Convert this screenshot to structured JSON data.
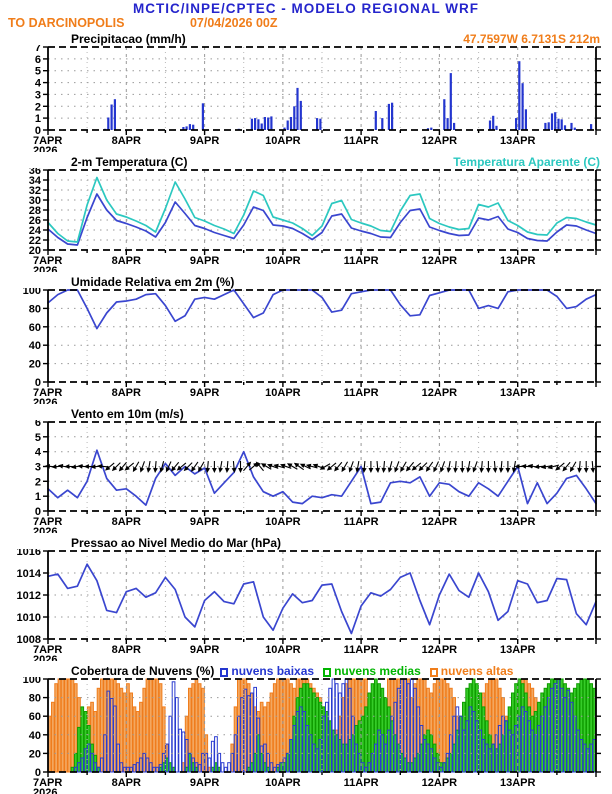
{
  "colors": {
    "title_blue": "#2525cc",
    "orange": "#f07d1a",
    "cyan": "#2cc8c0",
    "line_blue": "#3a46cf",
    "green": "#00b400"
  },
  "header": {
    "title": "MCTIC/INPE/CPTEC - MODELO REGIONAL WRF",
    "station": "TO DARCINOPOLIS",
    "run": "07/04/2026 00Z"
  },
  "x_axis": {
    "day_labels": [
      "7APR",
      "8APR",
      "9APR",
      "10APR",
      "11APR",
      "12APR",
      "13APR"
    ],
    "year_label": "2026",
    "total_hours": 168
  },
  "chart_data": [
    {
      "id": "precip",
      "type": "bar",
      "title": "Precipitacao (mm/h)",
      "right_label": "47.7597W 6.7131S 212m",
      "ylim": [
        0,
        7
      ],
      "ytick_step": 1,
      "bar_color": "#2436cf",
      "values": [
        0,
        0,
        0,
        0,
        0,
        0,
        0,
        0,
        0,
        0,
        0,
        0,
        0,
        0,
        0,
        0,
        0,
        0.1,
        1.05,
        2.15,
        2.6,
        0,
        0,
        0,
        0,
        0,
        0,
        0,
        0,
        0,
        0,
        0,
        0,
        0,
        0,
        0,
        0,
        0,
        0,
        0,
        0,
        0.25,
        0.3,
        0.5,
        0.45,
        0,
        0,
        2.25,
        0,
        0,
        0,
        0,
        0,
        0,
        0,
        0,
        0,
        0,
        0.1,
        0,
        0,
        0,
        0.95,
        1,
        0.9,
        0.55,
        1.1,
        1.05,
        1.15,
        0,
        0,
        0,
        0.2,
        0.8,
        1.1,
        2,
        3.55,
        2.45,
        0,
        0,
        0,
        0,
        1,
        0.95,
        0,
        0,
        0,
        0,
        0,
        0,
        0,
        0,
        0,
        0,
        0,
        0,
        0,
        0,
        0,
        0,
        1.6,
        0,
        1,
        0,
        2.2,
        2.3,
        0,
        0,
        0,
        0,
        0,
        0,
        0,
        0,
        0,
        0,
        0.15,
        0.2,
        0,
        0,
        0,
        2.6,
        1,
        4.8,
        0.6,
        0,
        0,
        0,
        0,
        0,
        0,
        0,
        0,
        0,
        0,
        0.8,
        1.2,
        0.35,
        0,
        0,
        0,
        0,
        0,
        1,
        5.8,
        3.95,
        1.75,
        0,
        0,
        0,
        0,
        0,
        0.6,
        0.65,
        1.4,
        1.5,
        0.95,
        0.9,
        0.4,
        0,
        0.6,
        0.2,
        0,
        0,
        0,
        0,
        0.5,
        0
      ]
    },
    {
      "id": "temp",
      "type": "line",
      "title": "2-m Temperatura (C)",
      "right_label": "Temperatura Aparente (C)",
      "ylim": [
        20,
        36
      ],
      "ytick_step": 2,
      "step_hours": 3,
      "series": [
        {
          "name": "2-m Temperatura (C)",
          "color": "#3a46cf",
          "values": [
            24.2,
            22.5,
            21.2,
            21,
            26.5,
            31.2,
            28,
            25.9,
            25.3,
            24.6,
            23.8,
            22.6,
            25.5,
            29.6,
            27.3,
            24.9,
            24.3,
            23.5,
            22.9,
            22.3,
            25,
            28.6,
            27.9,
            25,
            24.8,
            24.3,
            23.3,
            22.1,
            23.5,
            26.8,
            27.2,
            24.4,
            23.8,
            23.3,
            22.6,
            22.5,
            25.5,
            27.9,
            28.2,
            24.6,
            23.9,
            23.3,
            22.9,
            23,
            26.4,
            26,
            26.7,
            24.2,
            23.5,
            22.3,
            21.9,
            21.8,
            23.6,
            25,
            24.8,
            24,
            23.3
          ]
        },
        {
          "name": "Temperatura Aparente (C)",
          "color": "#2cc8c0",
          "values": [
            25.5,
            23.3,
            21.8,
            21.6,
            29,
            34.5,
            30,
            27.2,
            26.6,
            25.8,
            24.9,
            23.6,
            28.3,
            33.6,
            30.2,
            26.5,
            25.8,
            24.9,
            24.2,
            23.3,
            27,
            31.8,
            30.9,
            26.6,
            26,
            25.4,
            24.3,
            22.9,
            24.8,
            29.3,
            29.9,
            26.1,
            25.4,
            24.8,
            23.9,
            23.7,
            27.8,
            30.9,
            31.2,
            26.3,
            25.3,
            24.6,
            24.1,
            24.3,
            29.1,
            28.6,
            29.4,
            25.9,
            24.9,
            23.6,
            23.1,
            23,
            25.4,
            26.5,
            26.3,
            25.6,
            25
          ]
        }
      ]
    },
    {
      "id": "rh",
      "type": "line",
      "title": "Umidade Relativa em 2m (%)",
      "right_label": "",
      "ylim": [
        0,
        100
      ],
      "ytick_step": 20,
      "step_hours": 3,
      "series": [
        {
          "name": "Umidade Relativa",
          "color": "#3a46cf",
          "values": [
            86,
            95,
            100,
            100,
            80,
            58,
            75,
            87,
            88,
            90,
            95,
            96,
            83,
            66,
            72,
            90,
            92,
            90,
            95,
            100,
            85,
            70,
            75,
            95,
            100,
            100,
            100,
            100,
            92,
            76,
            78,
            96,
            98,
            100,
            100,
            100,
            84,
            72,
            73,
            94,
            97,
            100,
            100,
            100,
            80,
            83,
            80,
            98,
            100,
            100,
            100,
            100,
            93,
            80,
            82,
            90,
            95
          ]
        }
      ]
    },
    {
      "id": "wind",
      "type": "wind",
      "title": "Vento em 10m (m/s)",
      "right_label": "",
      "ylim": [
        0,
        6
      ],
      "ytick_step": 1,
      "step_hours": 3,
      "arrow_level": 3,
      "series": [
        {
          "name": "Vento em 10m",
          "color": "#3a46cf",
          "values": [
            1.5,
            0.9,
            1.4,
            0.9,
            2,
            4.1,
            2.2,
            1.4,
            1.5,
            1,
            0.4,
            2.2,
            3.2,
            2.4,
            3,
            2.5,
            2.9,
            1.2,
            1.9,
            2.6,
            4,
            2.3,
            1.3,
            1,
            1.3,
            0.6,
            0.5,
            1,
            0.9,
            1.1,
            1,
            2,
            3,
            0.5,
            0.6,
            1.9,
            2,
            1.9,
            2.3,
            1,
            1.9,
            1.8,
            1.3,
            1,
            1.9,
            1.5,
            1,
            2,
            3,
            0.5,
            1.9,
            0.5,
            1.2,
            2.2,
            2.4,
            1.5,
            0.5
          ]
        }
      ],
      "arrow_dirs_deg": [
        185,
        175,
        190,
        180,
        170,
        185,
        180,
        175,
        185,
        140,
        135,
        130,
        140,
        120,
        110,
        100,
        95,
        105,
        115,
        130,
        140,
        135,
        125,
        120,
        95,
        90,
        100,
        95,
        85,
        90,
        310,
        320,
        230,
        210,
        200,
        195,
        200,
        210,
        215,
        205,
        195,
        200,
        150,
        140,
        130,
        120,
        110,
        100,
        95,
        90,
        85,
        95,
        105,
        110,
        120,
        130,
        140,
        135,
        125,
        115,
        110,
        100,
        95,
        90,
        100,
        110,
        95,
        90,
        85,
        95,
        90,
        100,
        180,
        185,
        190,
        175,
        170,
        165,
        140,
        130,
        120,
        95,
        90,
        85
      ]
    },
    {
      "id": "pres",
      "type": "line",
      "title": "Pressao ao Nivel Medio do Mar (hPa)",
      "right_label": "",
      "ylim": [
        1008,
        1016
      ],
      "ytick_step": 2,
      "step_hours": 3,
      "series": [
        {
          "name": "Pressao",
          "color": "#3a46cf",
          "values": [
            1013.7,
            1013.9,
            1012.6,
            1012.8,
            1014.8,
            1013.3,
            1010.6,
            1010.4,
            1012.3,
            1012.6,
            1011.8,
            1012.2,
            1013.6,
            1012.5,
            1010,
            1009.1,
            1011.5,
            1012.3,
            1011.4,
            1011.2,
            1013,
            1013.2,
            1010,
            1008.8,
            1010.8,
            1012.1,
            1011.3,
            1011.5,
            1012.9,
            1013,
            1010.5,
            1008.5,
            1011,
            1012.2,
            1011.9,
            1012.5,
            1013.6,
            1014,
            1011.5,
            1009.3,
            1012,
            1013.9,
            1012.4,
            1011.8,
            1014,
            1012.3,
            1009.7,
            1010.5,
            1013.3,
            1013,
            1011.3,
            1011.5,
            1013.5,
            1013.4,
            1010.3,
            1009.3,
            1011.4
          ]
        }
      ]
    },
    {
      "id": "clouds",
      "type": "cloud-bars",
      "title": "Cobertura de Nuvens (%)",
      "ylim": [
        0,
        100
      ],
      "ytick_step": 20,
      "legend": [
        {
          "key": "baixas",
          "label": "nuvens baixas",
          "color": "#2436cf"
        },
        {
          "key": "medias",
          "label": "nuvens medias",
          "color": "#00b400"
        },
        {
          "key": "altas",
          "label": "nuvens altas",
          "color": "#f07d1a"
        }
      ],
      "series": [
        {
          "name": "nuvens altas",
          "key": "altas",
          "stroke": "#ef7d1d",
          "fill": "#f4a75f",
          "values": [
            60,
            75,
            95,
            100,
            100,
            100,
            100,
            100,
            95,
            80,
            65,
            60,
            70,
            75,
            65,
            90,
            100,
            100,
            100,
            100,
            100,
            95,
            90,
            85,
            95,
            85,
            70,
            65,
            75,
            90,
            100,
            100,
            100,
            100,
            95,
            70,
            30,
            5,
            0,
            0,
            0,
            10,
            60,
            90,
            95,
            100,
            95,
            90,
            40,
            5,
            0,
            0,
            0,
            0,
            0,
            0,
            30,
            70,
            100,
            100,
            100,
            95,
            85,
            70,
            65,
            75,
            70,
            75,
            85,
            95,
            100,
            100,
            100,
            100,
            95,
            90,
            100,
            100,
            100,
            100,
            95,
            90,
            85,
            80,
            70,
            60,
            50,
            40,
            45,
            60,
            80,
            95,
            100,
            100,
            100,
            100,
            100,
            100,
            30,
            10,
            5,
            10,
            30,
            80,
            100,
            100,
            100,
            100,
            100,
            100,
            100,
            80,
            95,
            100,
            100,
            100,
            90,
            85,
            95,
            100,
            100,
            100,
            95,
            90,
            80,
            60,
            40,
            20,
            10,
            5,
            10,
            30,
            60,
            85,
            95,
            100,
            100,
            100,
            90,
            80,
            60,
            40,
            30,
            20,
            100,
            100,
            100,
            95,
            90,
            80,
            60,
            40,
            30,
            25,
            30,
            40,
            30,
            20,
            15,
            10,
            10,
            15,
            20,
            25,
            20,
            15,
            10,
            10
          ]
        },
        {
          "name": "nuvens medias",
          "key": "medias",
          "stroke": "#0f9c00",
          "fill": "#35cc28",
          "values": [
            0,
            0,
            0,
            0,
            0,
            0,
            0,
            5,
            20,
            48,
            70,
            65,
            50,
            30,
            18,
            5,
            0,
            0,
            0,
            0,
            0,
            0,
            0,
            0,
            0,
            0,
            0,
            0,
            0,
            0,
            0,
            0,
            0,
            0,
            5,
            10,
            15,
            10,
            5,
            0,
            0,
            0,
            5,
            20,
            10,
            5,
            0,
            0,
            0,
            0,
            5,
            10,
            5,
            0,
            0,
            0,
            0,
            0,
            0,
            0,
            0,
            5,
            10,
            20,
            40,
            20,
            10,
            5,
            0,
            0,
            5,
            10,
            10,
            20,
            35,
            60,
            80,
            90,
            95,
            95,
            90,
            85,
            80,
            75,
            70,
            65,
            55,
            45,
            40,
            35,
            30,
            30,
            35,
            40,
            50,
            55,
            60,
            70,
            85,
            95,
            100,
            95,
            90,
            80,
            70,
            55,
            40,
            30,
            20,
            15,
            10,
            10,
            15,
            20,
            30,
            40,
            45,
            40,
            30,
            20,
            10,
            10,
            15,
            20,
            30,
            45,
            60,
            75,
            90,
            95,
            100,
            95,
            85,
            70,
            55,
            40,
            30,
            25,
            30,
            40,
            55,
            70,
            85,
            95,
            100,
            95,
            85,
            70,
            60,
            65,
            75,
            85,
            90,
            95,
            100,
            100,
            100,
            100,
            95,
            90,
            85,
            90,
            95,
            100,
            100,
            100,
            95,
            90
          ]
        },
        {
          "name": "nuvens baixas",
          "key": "baixas",
          "stroke": "#2a3bd0",
          "fill": "none",
          "values": [
            0,
            0,
            0,
            0,
            0,
            0,
            0,
            0,
            5,
            10,
            15,
            25,
            30,
            20,
            10,
            5,
            15,
            40,
            87,
            79,
            71,
            30,
            10,
            5,
            5,
            5,
            8,
            10,
            15,
            20,
            15,
            10,
            5,
            5,
            8,
            20,
            30,
            60,
            97,
            80,
            46,
            43,
            35,
            20,
            15,
            10,
            8,
            20,
            20,
            15,
            33,
            38,
            20,
            10,
            5,
            10,
            20,
            40,
            60,
            80,
            89,
            82,
            85,
            91,
            58,
            28,
            30,
            20,
            10,
            5,
            8,
            10,
            15,
            20,
            35,
            50,
            65,
            70,
            65,
            50,
            40,
            30,
            25,
            35,
            60,
            75,
            90,
            100,
            95,
            85,
            95,
            100,
            90,
            60,
            30,
            20,
            10,
            5,
            10,
            20,
            30,
            45,
            40,
            30,
            45,
            60,
            75,
            90,
            100,
            100,
            95,
            100,
            90,
            70,
            50,
            35,
            30,
            25,
            15,
            10,
            5,
            10,
            20,
            40,
            60,
            70,
            60,
            45,
            55,
            70,
            65,
            55,
            45,
            35,
            30,
            25,
            30,
            40,
            50,
            60,
            55,
            45,
            40,
            50,
            60,
            70,
            65,
            55,
            45,
            40,
            50,
            60,
            70,
            80,
            90,
            95,
            100,
            90,
            80,
            88,
            75,
            60,
            45,
            35,
            30,
            25,
            30,
            35
          ]
        }
      ]
    }
  ]
}
